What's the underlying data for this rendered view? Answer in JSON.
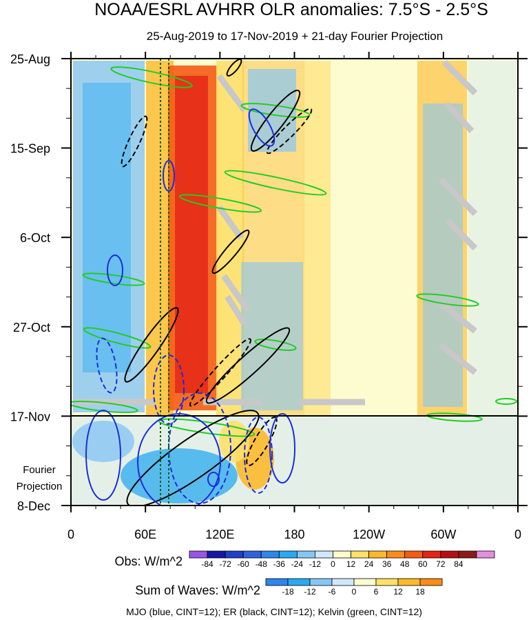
{
  "chart_data": {
    "type": "heatmap",
    "title": "NOAA/ESRL AVHRR OLR anomalies: 7.5°S - 2.5°S",
    "subtitle": "25-Aug-2019 to 17-Nov-2019 + 21-day Fourier Projection",
    "x_tick_labels": [
      "0",
      "60E",
      "120E",
      "180",
      "120W",
      "60W",
      "0"
    ],
    "x_ticks_deg": [
      0,
      60,
      120,
      180,
      240,
      300,
      360
    ],
    "x_range_deg": [
      0,
      360
    ],
    "y_tick_labels": [
      "25-Aug",
      "15-Sep",
      "6-Oct",
      "27-Oct",
      "17-Nov",
      "8-Dec"
    ],
    "y_range": [
      "25-Aug-2019",
      "8-Dec-2019"
    ],
    "observation_end": "17-Nov-2019",
    "projection_label": [
      "Fourier",
      "Projection"
    ],
    "obs_legend": {
      "label": "Obs: W/m^2",
      "levels": [
        "-84",
        "-72",
        "-60",
        "-48",
        "-36",
        "-24",
        "-12",
        "0",
        "12",
        "24",
        "36",
        "48",
        "60",
        "72",
        "84"
      ],
      "colors": [
        "#9a55e6",
        "#1518a4",
        "#1f3fc8",
        "#2e63dc",
        "#2d86ec",
        "#29aaf0",
        "#86c6f5",
        "#cfe8fa",
        "#fdfbd0",
        "#fde06a",
        "#fcb92c",
        "#fb8c1a",
        "#f35c13",
        "#e32315",
        "#b80e12",
        "#8b1a1a",
        "#e48ee0"
      ]
    },
    "waves_legend": {
      "label": "Sum of Waves: W/m^2",
      "levels": [
        "-18",
        "-12",
        "-6",
        "0",
        "6",
        "12",
        "18"
      ],
      "colors": [
        "#2d86ec",
        "#29aaf0",
        "#86c6f5",
        "#cfe8fa",
        "#fdfbd0",
        "#fde06a",
        "#fcb92c",
        "#fb8c1a"
      ]
    },
    "footer": "MJO (blue, CINT=12); ER (black, CINT=12); Kelvin (green, CINT=12)",
    "contour_colors": {
      "mjo": "#1a2be0",
      "er": "#000000",
      "kelvin": "#22cc22"
    },
    "reference_line_color": "#006400"
  }
}
